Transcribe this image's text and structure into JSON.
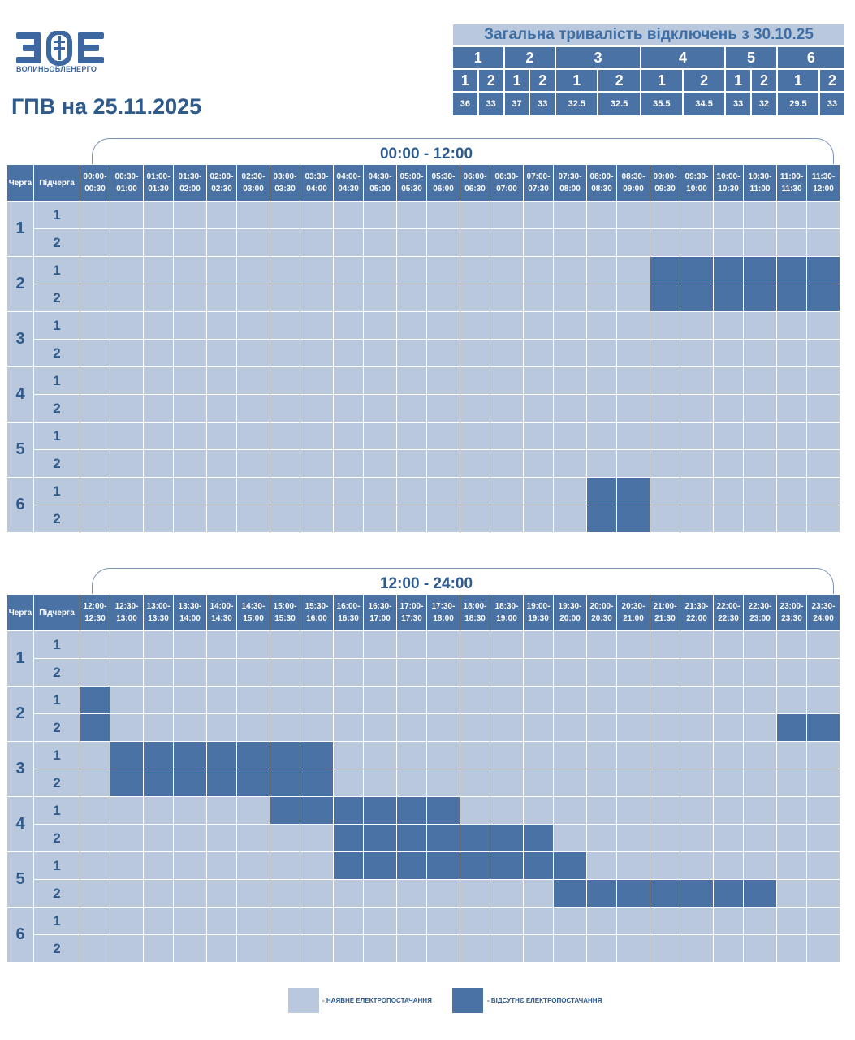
{
  "header": {
    "logo_letters": "ЗОЕ",
    "logo_caption": "ВОЛИНЬОБЛЕНЕРГО",
    "title": "ГПВ на 25.11.2025"
  },
  "summary": {
    "title": "Загальна тривалість відключень з 30.10.25",
    "queues": [
      "1",
      "2",
      "3",
      "4",
      "5",
      "6"
    ],
    "subqueues": [
      "1",
      "2",
      "1",
      "2",
      "1",
      "2",
      "1",
      "2",
      "1",
      "2",
      "1",
      "2"
    ],
    "values": [
      "36",
      "33",
      "37",
      "33",
      "32.5",
      "32.5",
      "35.5",
      "34.5",
      "33",
      "32",
      "29.5",
      "33"
    ]
  },
  "schedule": {
    "col_queue": "Черга",
    "col_subqueue": "Підчерга",
    "queues": [
      "1",
      "2",
      "3",
      "4",
      "5",
      "6"
    ],
    "subqueues": [
      "1",
      "2"
    ],
    "blocks": [
      {
        "range": "00:00 - 12:00",
        "slots": [
          "00:00-00:30",
          "00:30-01:00",
          "01:00-01:30",
          "01:30-02:00",
          "02:00-02:30",
          "02:30-03:00",
          "03:00-03:30",
          "03:30-04:00",
          "04:00-04:30",
          "04:30-05:00",
          "05:00-05:30",
          "05:30-06:00",
          "06:00-06:30",
          "06:30-07:00",
          "07:00-07:30",
          "07:30-08:00",
          "08:00-08:30",
          "08:30-09:00",
          "09:00-09:30",
          "09:30-10:00",
          "10:00-10:30",
          "10:30-11:00",
          "11:00-11:30",
          "11:30-12:00"
        ],
        "outages": {
          "1.1": [],
          "1.2": [],
          "2.1": [
            18,
            19,
            20,
            21,
            22,
            23
          ],
          "2.2": [
            18,
            19,
            20,
            21,
            22,
            23
          ],
          "3.1": [],
          "3.2": [],
          "4.1": [],
          "4.2": [],
          "5.1": [],
          "5.2": [],
          "6.1": [
            16,
            17
          ],
          "6.2": [
            16,
            17
          ]
        }
      },
      {
        "range": "12:00 - 24:00",
        "slots": [
          "12:00-12:30",
          "12:30-13:00",
          "13:00-13:30",
          "13:30-14:00",
          "14:00-14:30",
          "14:30-15:00",
          "15:00-15:30",
          "15:30-16:00",
          "16:00-16:30",
          "16:30-17:00",
          "17:00-17:30",
          "17:30-18:00",
          "18:00-18:30",
          "18:30-19:00",
          "19:00-19:30",
          "19:30-20:00",
          "20:00-20:30",
          "20:30-21:00",
          "21:00-21:30",
          "21:30-22:00",
          "22:00-22:30",
          "22:30-23:00",
          "23:00-23:30",
          "23:30-24:00"
        ],
        "outages": {
          "1.1": [],
          "1.2": [],
          "2.1": [
            0
          ],
          "2.2": [
            0,
            22,
            23
          ],
          "3.1": [
            1,
            2,
            3,
            4,
            5,
            6,
            7
          ],
          "3.2": [
            1,
            2,
            3,
            4,
            5,
            6,
            7
          ],
          "4.1": [
            6,
            7,
            8,
            9,
            10,
            11
          ],
          "4.2": [
            8,
            9,
            10,
            11,
            12,
            13,
            14
          ],
          "5.1": [
            8,
            9,
            10,
            11,
            12,
            13,
            14,
            15
          ],
          "5.2": [
            15,
            16,
            17,
            18,
            19,
            20,
            21
          ],
          "6.1": [],
          "6.2": []
        }
      }
    ]
  },
  "legend": {
    "available": "- НАЯВНЕ ЕЛЕКТРОПОСТАЧАННЯ",
    "absent": "- ВІДСУТНЄ ЕЛЕКТРОПОСТАЧАННЯ",
    "available_color": "#b9c8dc",
    "absent_color": "#4a72a4"
  }
}
